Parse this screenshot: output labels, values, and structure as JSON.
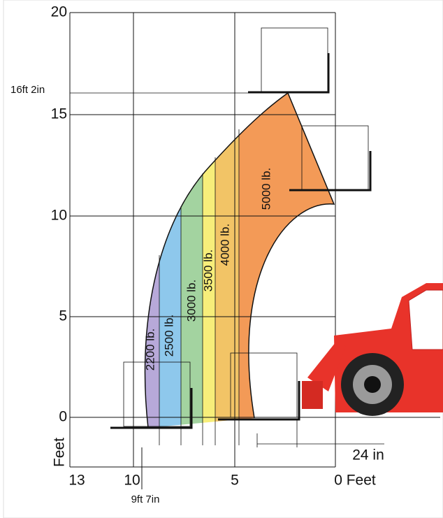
{
  "y_axis": {
    "labels": [
      "20",
      "15",
      "10",
      "5",
      "0"
    ],
    "title": "Feet"
  },
  "x_axis": {
    "labels": [
      "13",
      "10",
      "5",
      "0 Feet"
    ]
  },
  "annotations": {
    "max_height": "16ft 2in",
    "reach": "9ft 7in",
    "offset": "24 in"
  },
  "zones": [
    "2200 lb.",
    "2500 lb.",
    "3000 lb.",
    "3500 lb.",
    "4000 lb.",
    "5000 lb."
  ]
}
